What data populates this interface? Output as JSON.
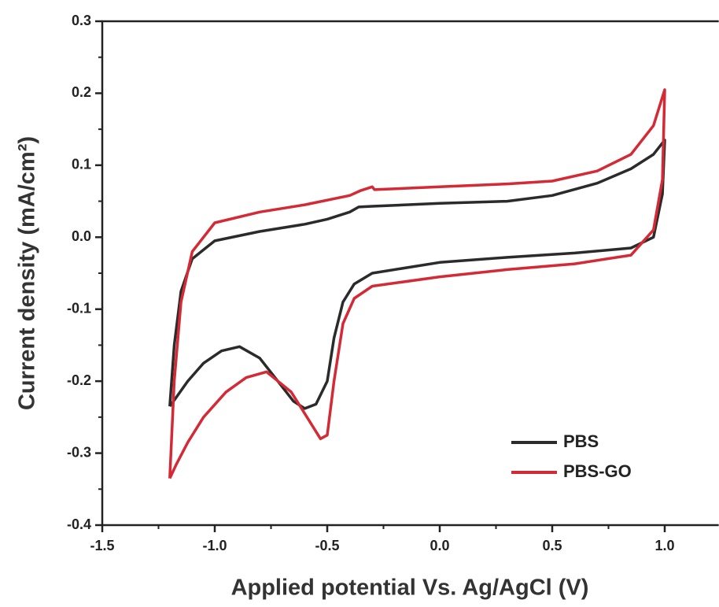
{
  "chart_data": {
    "type": "line",
    "x_label": "Applied potential Vs. Ag/AgCl (V)",
    "y_label": "Current density (mA/cm²)",
    "xlim": [
      -1.5,
      1.24
    ],
    "ylim": [
      -0.4,
      0.3
    ],
    "xticks": [
      -1.5,
      {
        "value": -1,
        "label": "-1.0"
      },
      -0.5,
      {
        "value": 0,
        "label": "0.0"
      },
      0.5,
      {
        "value": 1,
        "label": "1.0"
      }
    ],
    "yticks": [
      -0.4,
      -0.3,
      -0.2,
      -0.1,
      {
        "value": 0,
        "label": "0.0"
      },
      0.1,
      0.2,
      0.3
    ],
    "legend": "lower right",
    "series": [
      {
        "name": "PBS",
        "color": "#2b2b2b",
        "x": [
          -1.2,
          -1.18,
          -1.15,
          -1.1,
          -1.0,
          -0.8,
          -0.6,
          -0.5,
          -0.4,
          -0.36,
          -0.3,
          0.0,
          0.3,
          0.5,
          0.7,
          0.85,
          0.95,
          1.0,
          0.99,
          0.95,
          0.85,
          0.6,
          0.3,
          0.0,
          -0.3,
          -0.38,
          -0.43,
          -0.47,
          -0.5,
          -0.55,
          -0.6,
          -0.65,
          -0.72,
          -0.8,
          -0.89,
          -0.97,
          -1.05,
          -1.12,
          -1.17,
          -1.2
        ],
        "values": [
          -0.235,
          -0.15,
          -0.075,
          -0.03,
          -0.005,
          0.008,
          0.018,
          0.025,
          0.035,
          0.042,
          0.043,
          0.047,
          0.05,
          0.058,
          0.075,
          0.095,
          0.115,
          0.135,
          0.06,
          0.0,
          -0.015,
          -0.022,
          -0.028,
          -0.035,
          -0.05,
          -0.065,
          -0.09,
          -0.14,
          -0.2,
          -0.232,
          -0.238,
          -0.228,
          -0.2,
          -0.168,
          -0.152,
          -0.158,
          -0.175,
          -0.2,
          -0.222,
          -0.235
        ]
      },
      {
        "name": "PBS-GO",
        "color": "#d42a35",
        "x": [
          -1.2,
          -1.18,
          -1.15,
          -1.1,
          -1.0,
          -0.8,
          -0.6,
          -0.4,
          -0.35,
          -0.3,
          -0.29,
          0.0,
          0.3,
          0.5,
          0.7,
          0.85,
          0.95,
          1.0,
          0.99,
          0.95,
          0.85,
          0.6,
          0.3,
          0.0,
          -0.3,
          -0.38,
          -0.43,
          -0.47,
          -0.5,
          -0.53,
          -0.58,
          -0.66,
          -0.77,
          -0.86,
          -0.95,
          -1.05,
          -1.12,
          -1.17,
          -1.2
        ],
        "values": [
          -0.335,
          -0.2,
          -0.09,
          -0.02,
          0.02,
          0.035,
          0.045,
          0.058,
          0.065,
          0.07,
          0.066,
          0.07,
          0.074,
          0.078,
          0.092,
          0.115,
          0.155,
          0.205,
          0.08,
          0.01,
          -0.025,
          -0.037,
          -0.045,
          -0.055,
          -0.068,
          -0.085,
          -0.12,
          -0.2,
          -0.275,
          -0.28,
          -0.255,
          -0.215,
          -0.187,
          -0.195,
          -0.215,
          -0.25,
          -0.285,
          -0.315,
          -0.335
        ]
      }
    ]
  }
}
